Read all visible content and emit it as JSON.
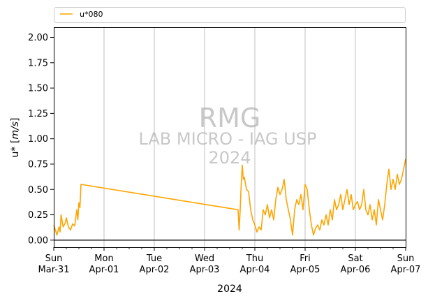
{
  "chart_data": {
    "type": "line",
    "xlabel": "2024",
    "ylabel_prefix": "u*",
    "ylabel_unit": "[m/s]",
    "ylim": [
      -0.07,
      2.1
    ],
    "xlim": [
      "2024-03-31 00:00",
      "2024-04-07 00:00"
    ],
    "yticks": [
      "0.00",
      "0.25",
      "0.50",
      "0.75",
      "1.00",
      "1.25",
      "1.50",
      "1.75",
      "2.00"
    ],
    "xticks": [
      {
        "day": "Sun",
        "date": "Mar-31"
      },
      {
        "day": "Mon",
        "date": "Apr-01"
      },
      {
        "day": "Tue",
        "date": "Apr-02"
      },
      {
        "day": "Wed",
        "date": "Apr-03"
      },
      {
        "day": "Thu",
        "date": "Apr-04"
      },
      {
        "day": "Fri",
        "date": "Apr-05"
      },
      {
        "day": "Sat",
        "date": "Apr-06"
      },
      {
        "day": "Sun",
        "date": "Apr-07"
      }
    ],
    "grid": "vertical at major ticks",
    "zero_line": true,
    "legend_placement": "top, above plot",
    "watermark": {
      "line1": "RMG",
      "line2": "LAB MICRO - IAG USP",
      "line3": "2024"
    },
    "series": [
      {
        "name": "u*080",
        "color": "#FFA500",
        "points": [
          [
            "2024-03-31 00:00",
            0.15
          ],
          [
            "2024-03-31 01:30",
            0.05
          ],
          [
            "2024-03-31 02:30",
            0.13
          ],
          [
            "2024-03-31 03:00",
            0.08
          ],
          [
            "2024-03-31 03:30",
            0.25
          ],
          [
            "2024-03-31 04:30",
            0.13
          ],
          [
            "2024-03-31 05:30",
            0.17
          ],
          [
            "2024-03-31 06:00",
            0.22
          ],
          [
            "2024-03-31 07:00",
            0.13
          ],
          [
            "2024-03-31 08:00",
            0.1
          ],
          [
            "2024-03-31 09:00",
            0.16
          ],
          [
            "2024-03-31 10:00",
            0.14
          ],
          [
            "2024-03-31 11:00",
            0.3
          ],
          [
            "2024-03-31 11:30",
            0.2
          ],
          [
            "2024-03-31 12:00",
            0.37
          ],
          [
            "2024-03-31 12:30",
            0.32
          ],
          [
            "2024-03-31 13:00",
            0.55
          ],
          [
            "2024-04-03 16:00",
            0.3
          ],
          [
            "2024-04-03 16:30",
            0.1
          ],
          [
            "2024-04-03 17:00",
            0.3
          ],
          [
            "2024-04-03 17:30",
            0.55
          ],
          [
            "2024-04-03 18:00",
            0.74
          ],
          [
            "2024-04-03 18:30",
            0.6
          ],
          [
            "2024-04-03 19:00",
            0.62
          ],
          [
            "2024-04-03 20:00",
            0.5
          ],
          [
            "2024-04-03 21:00",
            0.48
          ],
          [
            "2024-04-03 22:00",
            0.3
          ],
          [
            "2024-04-03 23:00",
            0.2
          ],
          [
            "2024-04-04 00:00",
            0.15
          ],
          [
            "2024-04-04 01:00",
            0.08
          ],
          [
            "2024-04-04 02:00",
            0.13
          ],
          [
            "2024-04-04 03:00",
            0.1
          ],
          [
            "2024-04-04 04:00",
            0.3
          ],
          [
            "2024-04-04 05:00",
            0.25
          ],
          [
            "2024-04-04 06:00",
            0.35
          ],
          [
            "2024-04-04 07:00",
            0.22
          ],
          [
            "2024-04-04 08:00",
            0.3
          ],
          [
            "2024-04-04 09:00",
            0.2
          ],
          [
            "2024-04-04 10:00",
            0.4
          ],
          [
            "2024-04-04 11:00",
            0.52
          ],
          [
            "2024-04-04 12:00",
            0.45
          ],
          [
            "2024-04-04 13:00",
            0.5
          ],
          [
            "2024-04-04 14:00",
            0.6
          ],
          [
            "2024-04-04 15:00",
            0.4
          ],
          [
            "2024-04-04 16:00",
            0.3
          ],
          [
            "2024-04-04 17:00",
            0.2
          ],
          [
            "2024-04-04 18:00",
            0.05
          ],
          [
            "2024-04-04 19:00",
            0.3
          ],
          [
            "2024-04-04 20:00",
            0.4
          ],
          [
            "2024-04-04 21:00",
            0.35
          ],
          [
            "2024-04-04 22:00",
            0.45
          ],
          [
            "2024-04-04 23:00",
            0.3
          ],
          [
            "2024-04-05 00:00",
            0.55
          ],
          [
            "2024-04-05 01:00",
            0.5
          ],
          [
            "2024-04-05 02:00",
            0.3
          ],
          [
            "2024-04-05 03:00",
            0.15
          ],
          [
            "2024-04-05 04:00",
            0.05
          ],
          [
            "2024-04-05 05:00",
            0.12
          ],
          [
            "2024-04-05 06:00",
            0.15
          ],
          [
            "2024-04-05 07:00",
            0.1
          ],
          [
            "2024-04-05 08:00",
            0.2
          ],
          [
            "2024-04-05 09:00",
            0.15
          ],
          [
            "2024-04-05 10:00",
            0.25
          ],
          [
            "2024-04-05 11:00",
            0.15
          ],
          [
            "2024-04-05 12:00",
            0.3
          ],
          [
            "2024-04-05 13:00",
            0.2
          ],
          [
            "2024-04-05 14:00",
            0.4
          ],
          [
            "2024-04-05 15:00",
            0.3
          ],
          [
            "2024-04-05 16:00",
            0.35
          ],
          [
            "2024-04-05 17:00",
            0.45
          ],
          [
            "2024-04-05 18:00",
            0.3
          ],
          [
            "2024-04-05 19:00",
            0.4
          ],
          [
            "2024-04-05 20:00",
            0.5
          ],
          [
            "2024-04-05 21:00",
            0.35
          ],
          [
            "2024-04-05 22:00",
            0.45
          ],
          [
            "2024-04-05 23:00",
            0.3
          ],
          [
            "2024-04-06 00:00",
            0.35
          ],
          [
            "2024-04-06 01:00",
            0.38
          ],
          [
            "2024-04-06 02:00",
            0.3
          ],
          [
            "2024-04-06 03:00",
            0.35
          ],
          [
            "2024-04-06 04:00",
            0.5
          ],
          [
            "2024-04-06 05:00",
            0.3
          ],
          [
            "2024-04-06 06:00",
            0.25
          ],
          [
            "2024-04-06 07:00",
            0.35
          ],
          [
            "2024-04-06 08:00",
            0.2
          ],
          [
            "2024-04-06 09:00",
            0.3
          ],
          [
            "2024-04-06 10:00",
            0.15
          ],
          [
            "2024-04-06 11:00",
            0.4
          ],
          [
            "2024-04-06 12:00",
            0.3
          ],
          [
            "2024-04-06 13:00",
            0.2
          ],
          [
            "2024-04-06 14:00",
            0.35
          ],
          [
            "2024-04-06 15:00",
            0.55
          ],
          [
            "2024-04-06 16:00",
            0.7
          ],
          [
            "2024-04-06 17:00",
            0.5
          ],
          [
            "2024-04-06 18:00",
            0.6
          ],
          [
            "2024-04-06 19:00",
            0.5
          ],
          [
            "2024-04-06 20:00",
            0.65
          ],
          [
            "2024-04-06 21:00",
            0.55
          ],
          [
            "2024-04-06 22:00",
            0.6
          ],
          [
            "2024-04-06 23:00",
            0.7
          ],
          [
            "2024-04-07 00:00",
            0.8
          ]
        ]
      }
    ]
  }
}
